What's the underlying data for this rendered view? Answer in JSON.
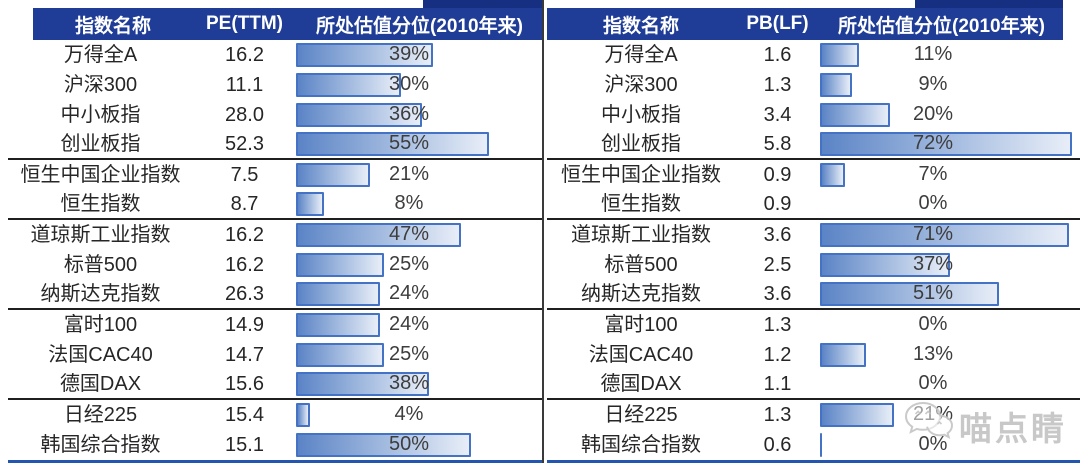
{
  "colors": {
    "header_bg": "#1f3c96",
    "header_strip": "#162f80",
    "bar_border": "#4472c4",
    "bar_fill_start": "#5b84c6",
    "bar_fill_end": "#e8eef8",
    "group_divider": "#1f1f1f",
    "bottom_line": "#2456b0",
    "row_text": "#262626"
  },
  "watermark": {
    "icon": "wechat-chat-bubbles-icon",
    "text": "喵点睛"
  },
  "chart_data": [
    {
      "type": "table",
      "columns": [
        "指数名称",
        "PE(TTM)",
        "所处估值分位(2010年来)"
      ],
      "bar_column": "所处估值分位(2010年来)",
      "bar_range_pct": [
        0,
        100
      ],
      "rows": [
        {
          "name": "万得全A",
          "metric": 16.2,
          "percentile": 39
        },
        {
          "name": "沪深300",
          "metric": 11.1,
          "percentile": 30
        },
        {
          "name": "中小板指",
          "metric": 28.0,
          "percentile": 36
        },
        {
          "name": "创业板指",
          "metric": 52.3,
          "percentile": 55,
          "group_end": true
        },
        {
          "name": "恒生中国企业指数",
          "metric": 7.5,
          "percentile": 21
        },
        {
          "name": "恒生指数",
          "metric": 8.7,
          "percentile": 8,
          "group_end": true
        },
        {
          "name": "道琼斯工业指数",
          "metric": 16.2,
          "percentile": 47
        },
        {
          "name": "标普500",
          "metric": 16.2,
          "percentile": 25
        },
        {
          "name": "纳斯达克指数",
          "metric": 26.3,
          "percentile": 24,
          "group_end": true
        },
        {
          "name": "富时100",
          "metric": 14.9,
          "percentile": 24
        },
        {
          "name": "法国CAC40",
          "metric": 14.7,
          "percentile": 25
        },
        {
          "name": "德国DAX",
          "metric": 15.6,
          "percentile": 38,
          "group_end": true
        },
        {
          "name": "日经225",
          "metric": 15.4,
          "percentile": 4
        },
        {
          "name": "韩国综合指数",
          "metric": 15.1,
          "percentile": 50
        }
      ]
    },
    {
      "type": "table",
      "columns": [
        "指数名称",
        "PB(LF)",
        "所处估值分位(2010年来)"
      ],
      "bar_column": "所处估值分位(2010年来)",
      "bar_range_pct": [
        0,
        100
      ],
      "rows": [
        {
          "name": "万得全A",
          "metric": 1.6,
          "percentile": 11
        },
        {
          "name": "沪深300",
          "metric": 1.3,
          "percentile": 9
        },
        {
          "name": "中小板指",
          "metric": 3.4,
          "percentile": 20
        },
        {
          "name": "创业板指",
          "metric": 5.8,
          "percentile": 72,
          "group_end": true
        },
        {
          "name": "恒生中国企业指数",
          "metric": 0.9,
          "percentile": 7
        },
        {
          "name": "恒生指数",
          "metric": 0.9,
          "percentile": 0,
          "group_end": true
        },
        {
          "name": "道琼斯工业指数",
          "metric": 3.6,
          "percentile": 71
        },
        {
          "name": "标普500",
          "metric": 2.5,
          "percentile": 37
        },
        {
          "name": "纳斯达克指数",
          "metric": 3.6,
          "percentile": 51,
          "group_end": true
        },
        {
          "name": "富时100",
          "metric": 1.3,
          "percentile": 0
        },
        {
          "name": "法国CAC40",
          "metric": 1.2,
          "percentile": 13
        },
        {
          "name": "德国DAX",
          "metric": 1.1,
          "percentile": 0,
          "group_end": true
        },
        {
          "name": "日经225",
          "metric": 1.3,
          "percentile": 21
        },
        {
          "name": "韩国综合指数",
          "metric": 0.6,
          "percentile": 0,
          "zero_tick": true
        }
      ]
    }
  ]
}
